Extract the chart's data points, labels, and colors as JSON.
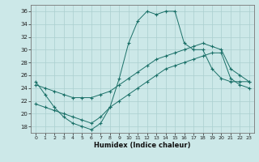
{
  "xlabel": "Humidex (Indice chaleur)",
  "xlim": [
    -0.5,
    23.5
  ],
  "ylim": [
    17,
    37
  ],
  "yticks": [
    18,
    20,
    22,
    24,
    26,
    28,
    30,
    32,
    34,
    36
  ],
  "xticks": [
    0,
    1,
    2,
    3,
    4,
    5,
    6,
    7,
    8,
    9,
    10,
    11,
    12,
    13,
    14,
    15,
    16,
    17,
    18,
    19,
    20,
    21,
    22,
    23
  ],
  "bg_color": "#cce8e8",
  "line_color": "#1a7068",
  "grid_color": "#aacfcf",
  "line1_x": [
    0,
    1,
    2,
    3,
    4,
    5,
    6,
    7,
    8,
    9,
    10,
    11,
    12,
    13,
    14,
    15,
    16,
    17,
    18,
    19,
    20,
    21,
    22,
    23
  ],
  "line1_y": [
    25.0,
    23.0,
    21.0,
    19.5,
    18.5,
    18.0,
    17.5,
    18.5,
    21.0,
    25.5,
    31.0,
    34.5,
    36.0,
    35.5,
    36.0,
    36.0,
    31.0,
    30.0,
    30.0,
    27.0,
    25.5,
    25.0,
    25.0,
    25.0
  ],
  "line2_x": [
    0,
    1,
    2,
    3,
    4,
    5,
    6,
    7,
    8,
    9,
    10,
    11,
    12,
    13,
    14,
    15,
    16,
    17,
    18,
    19,
    20,
    21,
    22,
    23
  ],
  "line2_y": [
    24.5,
    24.0,
    23.5,
    23.0,
    22.5,
    22.5,
    22.5,
    23.0,
    23.5,
    24.5,
    25.5,
    26.5,
    27.5,
    28.5,
    29.0,
    29.5,
    30.0,
    30.5,
    31.0,
    30.5,
    30.0,
    27.0,
    26.0,
    25.0
  ],
  "line3_x": [
    0,
    1,
    2,
    3,
    4,
    5,
    6,
    7,
    8,
    9,
    10,
    11,
    12,
    13,
    14,
    15,
    16,
    17,
    18,
    19,
    20,
    21,
    22,
    23
  ],
  "line3_y": [
    21.5,
    21.0,
    20.5,
    20.0,
    19.5,
    19.0,
    18.5,
    19.5,
    21.0,
    22.0,
    23.0,
    24.0,
    25.0,
    26.0,
    27.0,
    27.5,
    28.0,
    28.5,
    29.0,
    29.5,
    29.5,
    25.5,
    24.5,
    24.0
  ]
}
